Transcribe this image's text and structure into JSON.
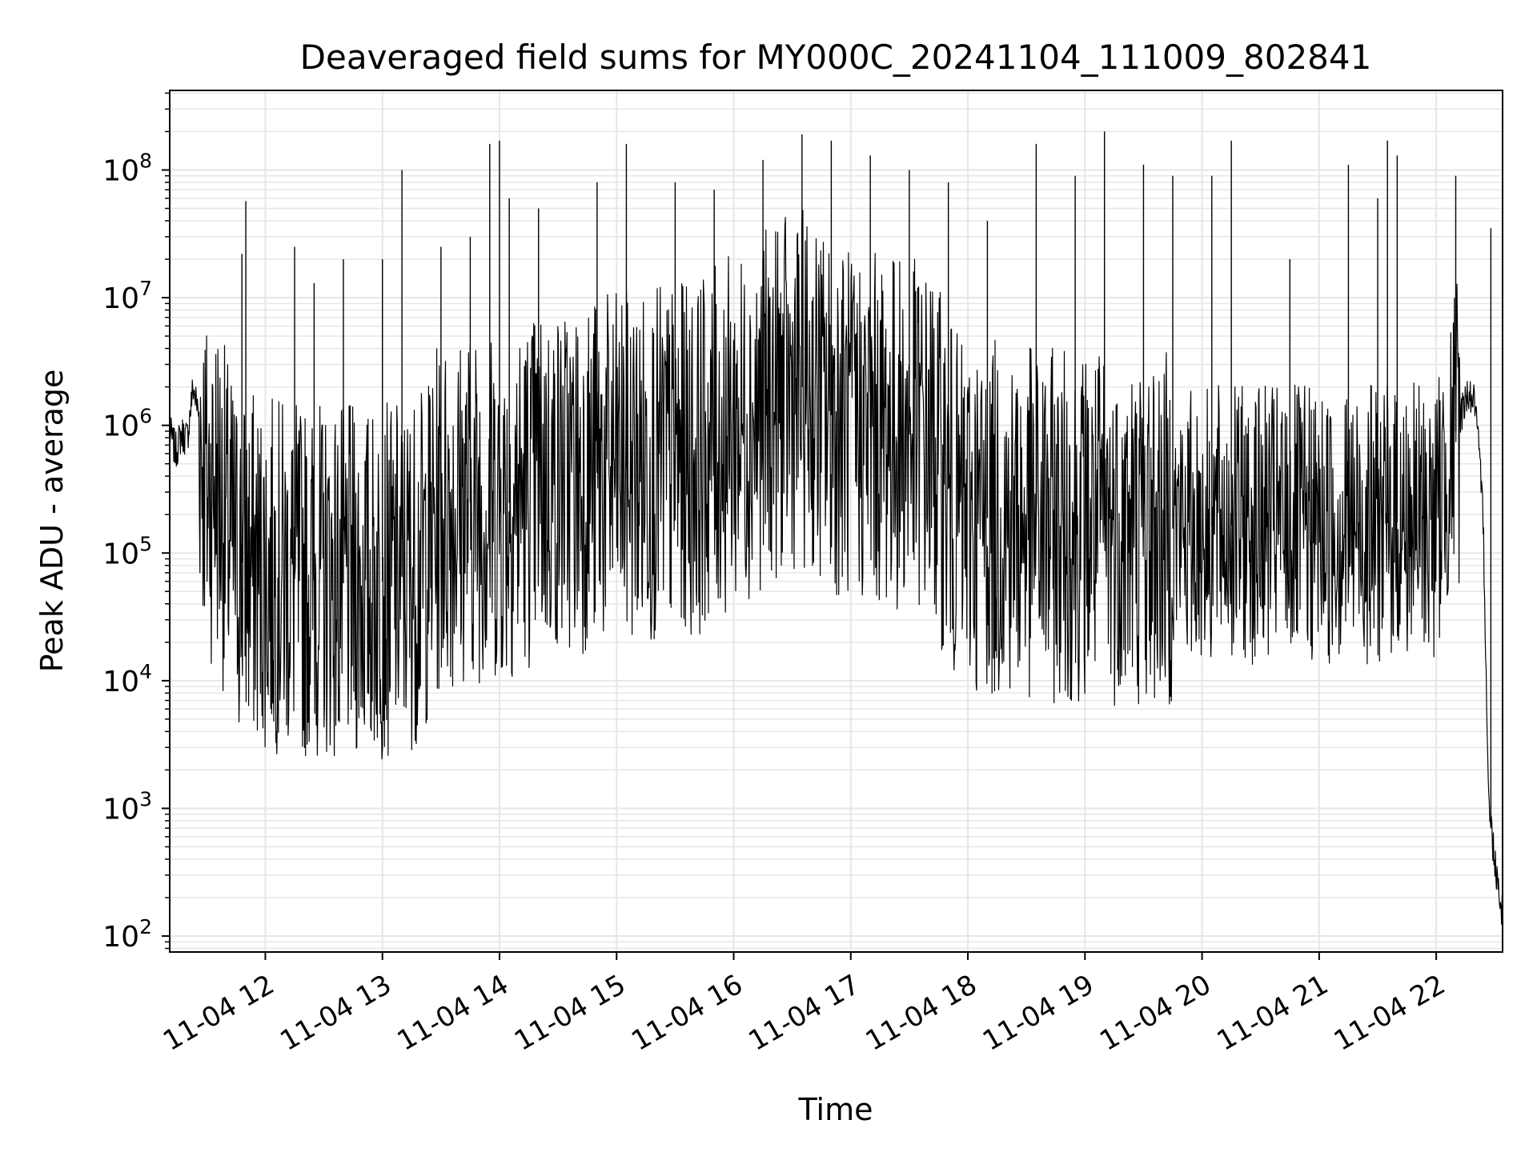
{
  "chart_data": {
    "type": "line",
    "title": "Deaveraged field sums for MY000C_20241104_111009_802841",
    "xlabel": "Time",
    "ylabel": "Peak ADU - average",
    "yscale": "log",
    "xlim": [
      "2024-11-04 11:11",
      "2024-11-04 22:34"
    ],
    "ylim": [
      75,
      420000000
    ],
    "grid": true,
    "line_color": "#000000",
    "grid_color": "#e6e6e6",
    "x_ticks": [
      {
        "label": "11-04 12",
        "value": "2024-11-04 12:00"
      },
      {
        "label": "11-04 13",
        "value": "2024-11-04 13:00"
      },
      {
        "label": "11-04 14",
        "value": "2024-11-04 14:00"
      },
      {
        "label": "11-04 15",
        "value": "2024-11-04 15:00"
      },
      {
        "label": "11-04 16",
        "value": "2024-11-04 16:00"
      },
      {
        "label": "11-04 17",
        "value": "2024-11-04 17:00"
      },
      {
        "label": "11-04 18",
        "value": "2024-11-04 18:00"
      },
      {
        "label": "11-04 19",
        "value": "2024-11-04 19:00"
      },
      {
        "label": "11-04 20",
        "value": "2024-11-04 20:00"
      },
      {
        "label": "11-04 21",
        "value": "2024-11-04 21:00"
      },
      {
        "label": "11-04 22",
        "value": "2024-11-04 22:00"
      }
    ],
    "y_ticks": [
      {
        "base": "10",
        "exp": "2",
        "value": 100
      },
      {
        "base": "10",
        "exp": "3",
        "value": 1000
      },
      {
        "base": "10",
        "exp": "4",
        "value": 10000
      },
      {
        "base": "10",
        "exp": "5",
        "value": 100000
      },
      {
        "base": "10",
        "exp": "6",
        "value": 1000000
      },
      {
        "base": "10",
        "exp": "7",
        "value": 10000000
      },
      {
        "base": "10",
        "exp": "8",
        "value": 100000000
      }
    ],
    "series": [
      {
        "points": [
          [
            "2024-11-04 11:11",
            900000
          ],
          [
            "2024-11-04 11:14",
            620000
          ],
          [
            "2024-11-04 11:17",
            850000
          ],
          [
            "2024-11-04 11:20",
            800000
          ],
          [
            "2024-11-04 11:23",
            2000000
          ],
          [
            "2024-11-04 11:26",
            1200000
          ],
          [
            "2024-11-04 11:30",
            300000
          ],
          [
            "2024-11-04 11:35",
            400000
          ],
          [
            "2024-11-04 11:40",
            150000
          ],
          [
            "2024-11-04 11:45",
            90000
          ],
          [
            "2024-11-04 11:50",
            80000
          ],
          [
            "2024-11-04 12:00",
            70000
          ],
          [
            "2024-11-04 12:10",
            65000
          ],
          [
            "2024-11-04 12:20",
            60000
          ],
          [
            "2024-11-04 12:30",
            62000
          ],
          [
            "2024-11-04 12:40",
            58000
          ],
          [
            "2024-11-04 12:50",
            57000
          ],
          [
            "2024-11-04 13:00",
            60000
          ],
          [
            "2024-11-04 13:10",
            65000
          ],
          [
            "2024-11-04 13:20",
            80000
          ],
          [
            "2024-11-04 13:30",
            200000
          ],
          [
            "2024-11-04 13:45",
            250000
          ],
          [
            "2024-11-04 14:00",
            220000
          ],
          [
            "2024-11-04 14:20",
            350000
          ],
          [
            "2024-11-04 14:40",
            400000
          ],
          [
            "2024-11-04 15:00",
            450000
          ],
          [
            "2024-11-04 15:20",
            500000
          ],
          [
            "2024-11-04 15:40",
            550000
          ],
          [
            "2024-11-04 16:00",
            900000
          ],
          [
            "2024-11-04 16:20",
            1500000
          ],
          [
            "2024-11-04 16:35",
            2000000
          ],
          [
            "2024-11-04 16:50",
            1200000
          ],
          [
            "2024-11-04 17:00",
            1000000
          ],
          [
            "2024-11-04 17:20",
            900000
          ],
          [
            "2024-11-04 17:40",
            800000
          ],
          [
            "2024-11-04 17:55",
            200000
          ],
          [
            "2024-11-04 18:20",
            180000
          ],
          [
            "2024-11-04 18:40",
            160000
          ],
          [
            "2024-11-04 19:00",
            170000
          ],
          [
            "2024-11-04 19:30",
            150000
          ],
          [
            "2024-11-04 20:00",
            160000
          ],
          [
            "2024-11-04 20:30",
            170000
          ],
          [
            "2024-11-04 21:00",
            160000
          ],
          [
            "2024-11-04 21:30",
            170000
          ],
          [
            "2024-11-04 22:00",
            180000
          ],
          [
            "2024-11-04 22:10",
            900000
          ],
          [
            "2024-11-04 22:16",
            1800000
          ],
          [
            "2024-11-04 22:20",
            1500000
          ],
          [
            "2024-11-04 22:24",
            200000
          ],
          [
            "2024-11-04 22:27",
            1000
          ],
          [
            "2024-11-04 22:30",
            400
          ],
          [
            "2024-11-04 22:34",
            150
          ]
        ]
      }
    ],
    "spikes": [
      [
        "2024-11-04 11:50",
        57000000
      ],
      [
        "2024-11-04 11:48",
        22000000
      ],
      [
        "2024-11-04 12:15",
        25000000
      ],
      [
        "2024-11-04 12:25",
        13000000
      ],
      [
        "2024-11-04 12:40",
        20000000
      ],
      [
        "2024-11-04 13:10",
        100000000
      ],
      [
        "2024-11-04 13:00",
        20000000
      ],
      [
        "2024-11-04 13:30",
        25000000
      ],
      [
        "2024-11-04 13:45",
        30000000
      ],
      [
        "2024-11-04 13:55",
        160000000
      ],
      [
        "2024-11-04 14:00",
        170000000
      ],
      [
        "2024-11-04 14:05",
        60000000
      ],
      [
        "2024-11-04 14:20",
        50000000
      ],
      [
        "2024-11-04 14:50",
        80000000
      ],
      [
        "2024-11-04 15:05",
        160000000
      ],
      [
        "2024-11-04 15:30",
        80000000
      ],
      [
        "2024-11-04 15:50",
        70000000
      ],
      [
        "2024-11-04 16:15",
        120000000
      ],
      [
        "2024-11-04 16:35",
        190000000
      ],
      [
        "2024-11-04 16:50",
        170000000
      ],
      [
        "2024-11-04 17:10",
        130000000
      ],
      [
        "2024-11-04 17:30",
        100000000
      ],
      [
        "2024-11-04 17:50",
        80000000
      ],
      [
        "2024-11-04 18:10",
        40000000
      ],
      [
        "2024-11-04 18:35",
        160000000
      ],
      [
        "2024-11-04 18:55",
        90000000
      ],
      [
        "2024-11-04 19:10",
        200000000
      ],
      [
        "2024-11-04 19:30",
        110000000
      ],
      [
        "2024-11-04 19:45",
        90000000
      ],
      [
        "2024-11-04 20:05",
        90000000
      ],
      [
        "2024-11-04 20:15",
        170000000
      ],
      [
        "2024-11-04 20:45",
        20000000
      ],
      [
        "2024-11-04 21:15",
        110000000
      ],
      [
        "2024-11-04 21:30",
        60000000
      ],
      [
        "2024-11-04 21:35",
        170000000
      ],
      [
        "2024-11-04 21:40",
        130000000
      ],
      [
        "2024-11-04 22:10",
        90000000
      ],
      [
        "2024-11-04 22:28",
        35000000
      ]
    ]
  }
}
